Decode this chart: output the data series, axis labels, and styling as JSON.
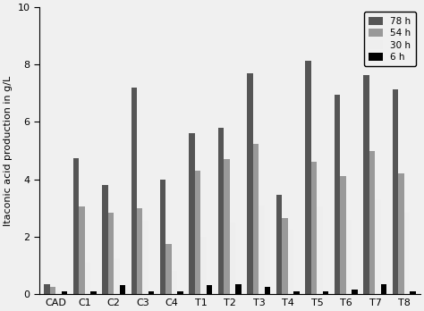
{
  "categories": [
    "CAD",
    "C1",
    "C2",
    "C3",
    "C4",
    "T1",
    "T2",
    "T3",
    "T4",
    "T5",
    "T6",
    "T7",
    "T8"
  ],
  "series": {
    "78 h": [
      0.35,
      4.75,
      3.8,
      7.2,
      4.0,
      5.6,
      5.8,
      7.7,
      3.45,
      8.15,
      6.95,
      7.65,
      7.15
    ],
    "54 h": [
      0.25,
      3.05,
      2.85,
      3.0,
      1.75,
      4.3,
      4.7,
      5.25,
      2.65,
      4.6,
      4.1,
      5.0,
      4.2
    ],
    "30 h": [
      0.1,
      1.1,
      1.25,
      2.55,
      0.8,
      2.0,
      2.5,
      3.1,
      2.25,
      3.05,
      2.6,
      3.3,
      2.85
    ],
    "6 h": [
      0.1,
      0.1,
      0.3,
      0.1,
      0.1,
      0.3,
      0.35,
      0.25,
      0.1,
      0.1,
      0.15,
      0.35,
      0.1
    ]
  },
  "colors": {
    "78 h": "#555555",
    "54 h": "#999999",
    "30 h": "#eeeeee",
    "6 h": "#000000"
  },
  "ylabel": "Itaconic acid production in g/L",
  "ylim": [
    0,
    10
  ],
  "yticks": [
    0,
    2,
    4,
    6,
    8,
    10
  ],
  "legend_order": [
    "78 h",
    "54 h",
    "30 h",
    "6 h"
  ],
  "bar_width": 0.2,
  "figsize": [
    4.74,
    3.48
  ],
  "dpi": 100,
  "background": "#f0f0f0"
}
